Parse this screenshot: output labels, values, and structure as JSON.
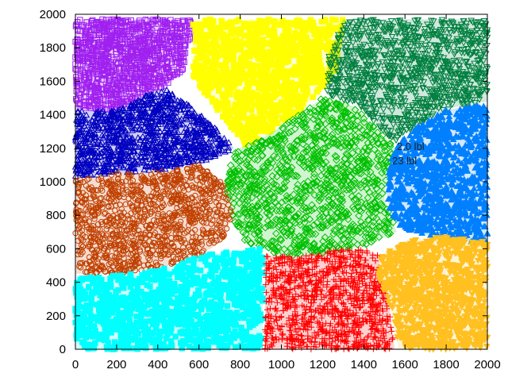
{
  "chart_data": {
    "type": "scatter",
    "title": "",
    "xlabel": "",
    "ylabel": "",
    "xlim": [
      0,
      2000
    ],
    "ylim": [
      0,
      2000
    ],
    "x_ticks": [
      0,
      200,
      400,
      600,
      800,
      1000,
      1200,
      1400,
      1600,
      1800,
      2000
    ],
    "y_ticks": [
      0,
      200,
      400,
      600,
      800,
      1000,
      1200,
      1400,
      1600,
      1800,
      2000
    ],
    "grid": false,
    "legend": "none",
    "annotations": [
      "2.0 lbl",
      "23 lbl"
    ],
    "series": [
      {
        "color": "#a020f0",
        "marker": "square",
        "region": [
          [
            0,
            1970
          ],
          [
            560,
            1970
          ],
          [
            560,
            1870
          ],
          [
            520,
            1660
          ],
          [
            430,
            1560
          ],
          [
            330,
            1520
          ],
          [
            200,
            1430
          ],
          [
            0,
            1430
          ]
        ]
      },
      {
        "color": "#ffff00",
        "marker": "square-filled",
        "region": [
          [
            570,
            1970
          ],
          [
            1300,
            1970
          ],
          [
            1280,
            1820
          ],
          [
            1260,
            1650
          ],
          [
            1180,
            1520
          ],
          [
            1050,
            1380
          ],
          [
            920,
            1280
          ],
          [
            830,
            1200
          ],
          [
            760,
            1320
          ],
          [
            640,
            1500
          ],
          [
            570,
            1640
          ]
        ]
      },
      {
        "color": "#008040",
        "marker": "triangle-down",
        "region": [
          [
            1300,
            1970
          ],
          [
            2000,
            1970
          ],
          [
            2000,
            1480
          ],
          [
            1820,
            1440
          ],
          [
            1650,
            1330
          ],
          [
            1550,
            1240
          ],
          [
            1450,
            1360
          ],
          [
            1360,
            1470
          ],
          [
            1220,
            1520
          ],
          [
            1230,
            1760
          ]
        ]
      },
      {
        "color": "#0000c0",
        "marker": "triangle",
        "region": [
          [
            0,
            1420
          ],
          [
            200,
            1430
          ],
          [
            330,
            1510
          ],
          [
            430,
            1560
          ],
          [
            560,
            1450
          ],
          [
            680,
            1320
          ],
          [
            770,
            1200
          ],
          [
            620,
            1120
          ],
          [
            420,
            1070
          ],
          [
            200,
            1050
          ],
          [
            0,
            1030
          ]
        ]
      },
      {
        "color": "#00c000",
        "marker": "diamond",
        "region": [
          [
            780,
            1190
          ],
          [
            920,
            1270
          ],
          [
            1060,
            1380
          ],
          [
            1200,
            1500
          ],
          [
            1360,
            1450
          ],
          [
            1470,
            1300
          ],
          [
            1560,
            1200
          ],
          [
            1520,
            1100
          ],
          [
            1500,
            900
          ],
          [
            1560,
            700
          ],
          [
            1400,
            620
          ],
          [
            1200,
            560
          ],
          [
            1000,
            560
          ],
          [
            820,
            640
          ],
          [
            760,
            800
          ],
          [
            720,
            1000
          ]
        ]
      },
      {
        "color": "#0080ff",
        "marker": "triangle-filled",
        "region": [
          [
            1560,
            1210
          ],
          [
            1650,
            1320
          ],
          [
            1800,
            1430
          ],
          [
            2000,
            1460
          ],
          [
            2000,
            630
          ],
          [
            1850,
            650
          ],
          [
            1620,
            700
          ],
          [
            1530,
            780
          ],
          [
            1510,
            940
          ],
          [
            1530,
            1120
          ]
        ]
      },
      {
        "color": "#c04000",
        "marker": "circle",
        "region": [
          [
            0,
            1010
          ],
          [
            200,
            1050
          ],
          [
            420,
            1060
          ],
          [
            600,
            1100
          ],
          [
            720,
            1000
          ],
          [
            760,
            800
          ],
          [
            720,
            650
          ],
          [
            600,
            560
          ],
          [
            400,
            480
          ],
          [
            200,
            450
          ],
          [
            0,
            450
          ]
        ]
      },
      {
        "color": "#00ffff",
        "marker": "square-filled",
        "region": [
          [
            0,
            440
          ],
          [
            200,
            440
          ],
          [
            400,
            470
          ],
          [
            600,
            560
          ],
          [
            750,
            580
          ],
          [
            910,
            600
          ],
          [
            910,
            0
          ],
          [
            0,
            0
          ]
        ]
      },
      {
        "color": "#ff0000",
        "marker": "plus",
        "region": [
          [
            920,
            560
          ],
          [
            1100,
            560
          ],
          [
            1300,
            600
          ],
          [
            1420,
            590
          ],
          [
            1480,
            560
          ],
          [
            1470,
            430
          ],
          [
            1520,
            300
          ],
          [
            1550,
            0
          ],
          [
            920,
            0
          ]
        ]
      },
      {
        "color": "#ffc020",
        "marker": "triangle-down-filled",
        "region": [
          [
            1480,
            560
          ],
          [
            1620,
            650
          ],
          [
            1800,
            680
          ],
          [
            2000,
            640
          ],
          [
            2000,
            0
          ],
          [
            1570,
            0
          ],
          [
            1520,
            280
          ],
          [
            1470,
            420
          ]
        ]
      }
    ]
  }
}
